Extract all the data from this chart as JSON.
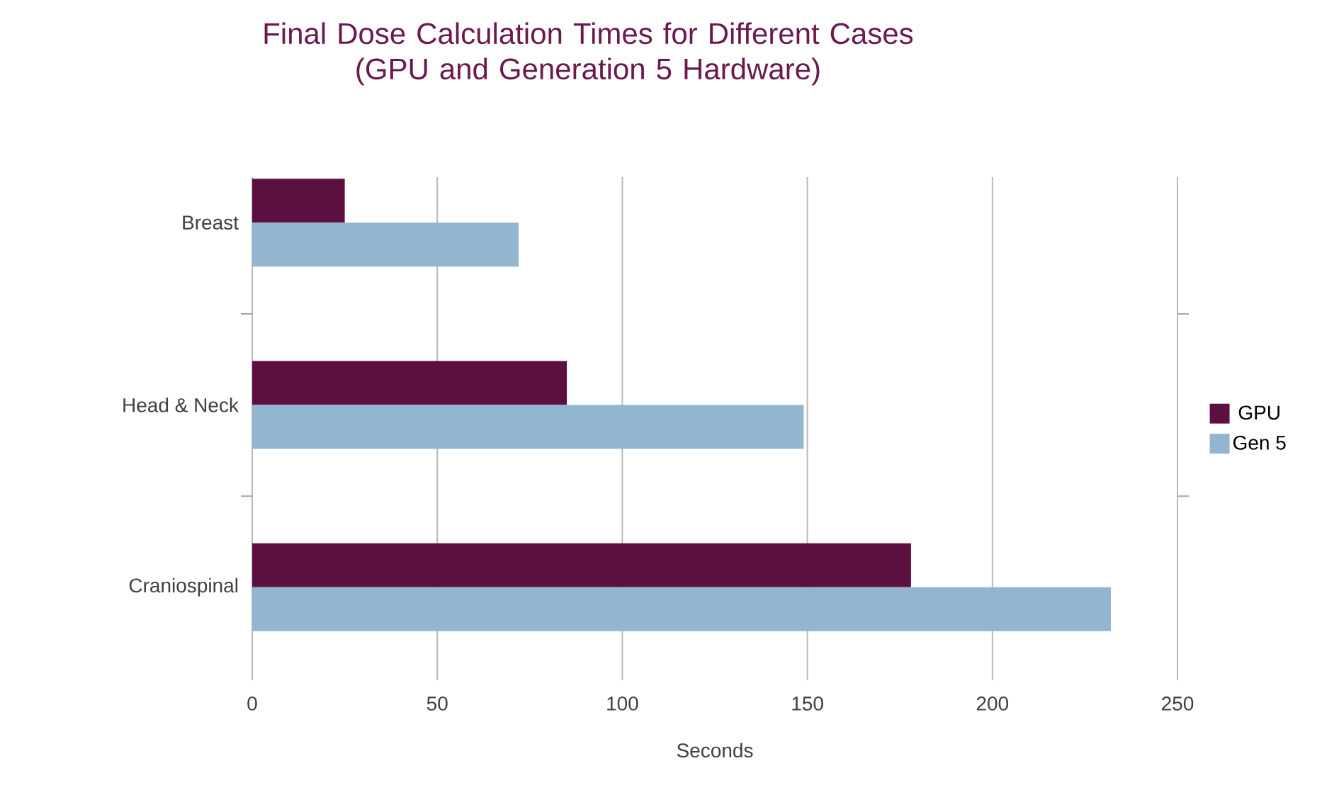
{
  "chart_data": {
    "type": "bar",
    "orientation": "horizontal",
    "title": "Final Dose Calculation Times for Different Cases\n(GPU and Generation 5 Hardware)",
    "xlabel": "Seconds",
    "categories": [
      "Breast",
      "Head & Neck",
      "Craniospinal"
    ],
    "series": [
      {
        "name": "GPU",
        "color": "#5c1040",
        "values": [
          25,
          85,
          178
        ]
      },
      {
        "name": "Gen 5",
        "color": "#92b5d0",
        "values": [
          72,
          149,
          232
        ]
      }
    ],
    "xlim": [
      0,
      250
    ],
    "xticks": [
      0,
      50,
      100,
      150,
      200,
      250
    ],
    "grid": "x",
    "legend": "right"
  }
}
